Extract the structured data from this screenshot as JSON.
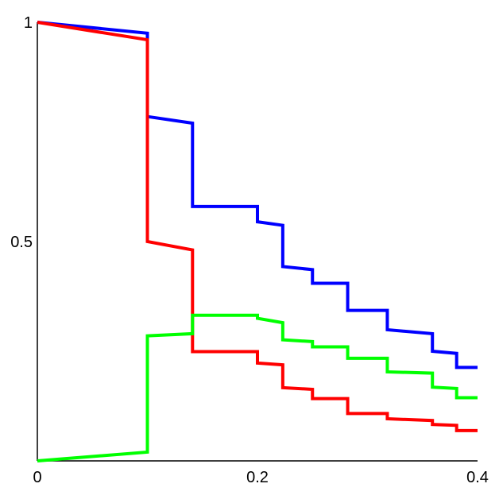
{
  "chart_data": {
    "type": "line",
    "title": "",
    "xlabel": "",
    "ylabel": "",
    "xlim": [
      0,
      0.4
    ],
    "ylim": [
      0,
      1
    ],
    "grid": false,
    "x_ticks": [
      {
        "value": 0,
        "label": "0"
      },
      {
        "value": 0.2,
        "label": "0.2"
      },
      {
        "value": 0.4,
        "label": "0.4"
      }
    ],
    "y_ticks": [
      {
        "value": 0.5,
        "label": "0.5"
      },
      {
        "value": 1,
        "label": "1"
      }
    ],
    "series": [
      {
        "color": "#0000ff",
        "points": [
          [
            0,
            1
          ],
          [
            0.1,
            0.975
          ],
          [
            0.1,
            0.785
          ],
          [
            0.141,
            0.77
          ],
          [
            0.141,
            0.58
          ],
          [
            0.2,
            0.58
          ],
          [
            0.2,
            0.545
          ],
          [
            0.223,
            0.537
          ],
          [
            0.223,
            0.443
          ],
          [
            0.25,
            0.436
          ],
          [
            0.25,
            0.405
          ],
          [
            0.282,
            0.405
          ],
          [
            0.282,
            0.343
          ],
          [
            0.318,
            0.343
          ],
          [
            0.318,
            0.299
          ],
          [
            0.359,
            0.29
          ],
          [
            0.359,
            0.25
          ],
          [
            0.381,
            0.245
          ],
          [
            0.381,
            0.213
          ],
          [
            0.4,
            0.213
          ]
        ]
      },
      {
        "color": "#ff0000",
        "points": [
          [
            0,
            1
          ],
          [
            0.1,
            0.96
          ],
          [
            0.1,
            0.5
          ],
          [
            0.141,
            0.481
          ],
          [
            0.141,
            0.249
          ],
          [
            0.2,
            0.249
          ],
          [
            0.2,
            0.223
          ],
          [
            0.223,
            0.219
          ],
          [
            0.223,
            0.167
          ],
          [
            0.25,
            0.163
          ],
          [
            0.25,
            0.142
          ],
          [
            0.282,
            0.142
          ],
          [
            0.282,
            0.108
          ],
          [
            0.318,
            0.108
          ],
          [
            0.318,
            0.096
          ],
          [
            0.359,
            0.092
          ],
          [
            0.359,
            0.083
          ],
          [
            0.381,
            0.081
          ],
          [
            0.381,
            0.069
          ],
          [
            0.4,
            0.069
          ]
        ]
      },
      {
        "color": "#00ff00",
        "points": [
          [
            0,
            0
          ],
          [
            0.1,
            0.02
          ],
          [
            0.1,
            0.285
          ],
          [
            0.141,
            0.29
          ],
          [
            0.141,
            0.332
          ],
          [
            0.2,
            0.332
          ],
          [
            0.2,
            0.325
          ],
          [
            0.223,
            0.315
          ],
          [
            0.223,
            0.276
          ],
          [
            0.25,
            0.272
          ],
          [
            0.25,
            0.26
          ],
          [
            0.282,
            0.26
          ],
          [
            0.282,
            0.234
          ],
          [
            0.318,
            0.234
          ],
          [
            0.318,
            0.203
          ],
          [
            0.359,
            0.2
          ],
          [
            0.359,
            0.168
          ],
          [
            0.381,
            0.165
          ],
          [
            0.381,
            0.144
          ],
          [
            0.4,
            0.144
          ]
        ]
      }
    ]
  }
}
